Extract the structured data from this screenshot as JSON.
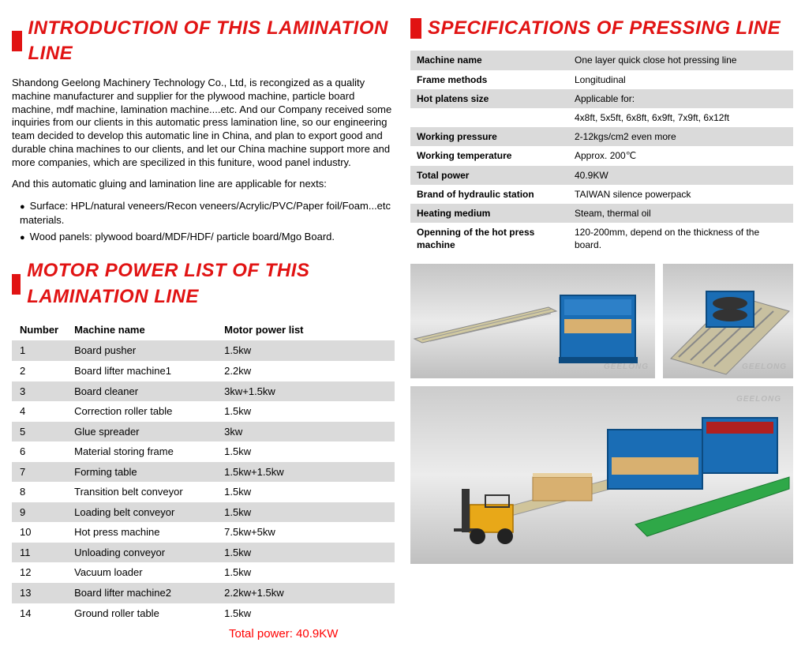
{
  "left": {
    "intro_title": "INTRODUCTION OF THIS LAMINATION LINE",
    "para1": "Shandong Geelong Machinery Technology Co., Ltd, is recongized as a quality machine manufacturer and supplier for the plywood machine, particle board machine, mdf machine, lamination machine....etc. And our Company received some inquiries from our clients in this automatic press lamination line, so our engineering team decided to develop this automatic line in China, and plan to export good and durable china machines to our clients, and let our China machine support more and more companies, which are specilized in this funiture, wood panel industry.",
    "para2": "And this automatic gluing and lamination line are applicable for nexts:",
    "bullets": [
      "Surface: HPL/natural veneers/Recon veneers/Acrylic/PVC/Paper foil/Foam...etc materials.",
      "Wood panels: plywood board/MDF/HDF/ particle board/Mgo Board."
    ],
    "motor_title": "MOTOR POWER LIST OF THIS LAMINATION LINE",
    "motor_headers": {
      "num": "Number",
      "name": "Machine name",
      "power": "Motor power list"
    },
    "motor_rows": [
      {
        "n": "1",
        "name": "Board pusher",
        "p": "1.5kw"
      },
      {
        "n": "2",
        "name": "Board lifter machine1",
        "p": "2.2kw"
      },
      {
        "n": "3",
        "name": "Board cleaner",
        "p": "3kw+1.5kw"
      },
      {
        "n": "4",
        "name": "Correction roller table",
        "p": "1.5kw"
      },
      {
        "n": "5",
        "name": "Glue spreader",
        "p": "3kw"
      },
      {
        "n": "6",
        "name": "Material storing frame",
        "p": "1.5kw"
      },
      {
        "n": "7",
        "name": "Forming table",
        "p": "1.5kw+1.5kw"
      },
      {
        "n": "8",
        "name": "Transition belt conveyor",
        "p": "1.5kw"
      },
      {
        "n": "9",
        "name": "Loading belt conveyor",
        "p": "1.5kw"
      },
      {
        "n": "10",
        "name": "Hot press machine",
        "p": "7.5kw+5kw"
      },
      {
        "n": "11",
        "name": "Unloading conveyor",
        "p": "1.5kw"
      },
      {
        "n": "12",
        "name": "Vacuum loader",
        "p": "1.5kw"
      },
      {
        "n": "13",
        "name": "Board lifter machine2",
        "p": "2.2kw+1.5kw"
      },
      {
        "n": "14",
        "name": "Ground roller table",
        "p": "1.5kw"
      }
    ],
    "total_power": "Total power: 40.9KW"
  },
  "right": {
    "spec_title": "SPECIFICATIONS OF PRESSING LINE",
    "spec_rows": [
      {
        "label": "Machine name",
        "value": "One layer quick close hot pressing line"
      },
      {
        "label": "Frame methods",
        "value": "Longitudinal"
      },
      {
        "label": "Hot platens size",
        "value": "Applicable for:"
      },
      {
        "label": "",
        "value": "4x8ft, 5x5ft, 6x8ft, 6x9ft, 7x9ft, 6x12ft"
      },
      {
        "label": "Working pressure",
        "value": "2-12kgs/cm2 even more"
      },
      {
        "label": "Working temperature",
        "value": "Approx. 200℃"
      },
      {
        "label": "Total power",
        "value": "40.9KW"
      },
      {
        "label": "Brand of hydraulic station",
        "value": "TAIWAN silence powerpack"
      },
      {
        "label": "Heating medium",
        "value": "Steam, thermal oil"
      },
      {
        "label": "Openning of the hot press machine",
        "value": "120-200mm, depend on the thickness of the board."
      }
    ],
    "watermark": "GEELONG"
  },
  "colors": {
    "accent_red": "#e11313",
    "row_alt": "#dadada",
    "text": "#000000",
    "total_red": "#ff0000"
  }
}
